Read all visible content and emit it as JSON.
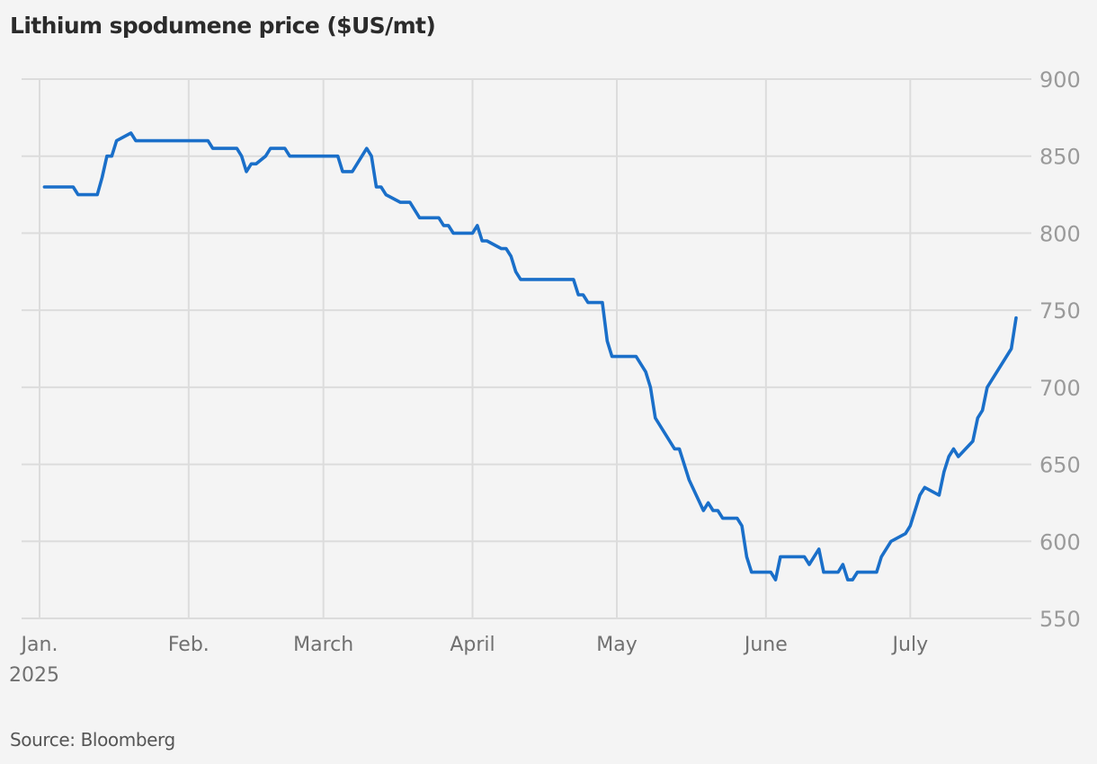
{
  "title": "Lithium spodumene price ($US/mt)",
  "source": "Source: Bloomberg",
  "colors": {
    "background": "#f4f4f4",
    "gridline": "#dcdcdc",
    "line": "#1a6fc9",
    "title": "#2b2b2b",
    "ytick": "#9a9a9a",
    "xtick": "#707070",
    "source": "#555555"
  },
  "chart_data": {
    "type": "line",
    "title": "Lithium spodumene price ($US/mt)",
    "xlabel": "",
    "ylabel": "$US/mt",
    "ylim": [
      550,
      900
    ],
    "yticks": [
      550,
      600,
      650,
      700,
      750,
      800,
      850,
      900
    ],
    "xticks": [
      {
        "label": "Jan.",
        "sublabel": "2025",
        "pos": 0
      },
      {
        "label": "Feb.",
        "pos": 31
      },
      {
        "label": "March",
        "pos": 59
      },
      {
        "label": "April",
        "pos": 90
      },
      {
        "label": "May",
        "pos": 120
      },
      {
        "label": "June",
        "pos": 151
      },
      {
        "label": "July",
        "pos": 181
      }
    ],
    "grid": true,
    "legend": null,
    "yaxis_position": "right",
    "source": "Bloomberg",
    "series": [
      {
        "name": "Lithium spodumene price",
        "x_unit": "days since Jan 1, 2025",
        "points": [
          [
            1,
            830
          ],
          [
            7,
            830
          ],
          [
            8,
            825
          ],
          [
            12,
            825
          ],
          [
            13,
            836
          ],
          [
            14,
            850
          ],
          [
            15,
            850
          ],
          [
            16,
            860
          ],
          [
            19,
            865
          ],
          [
            20,
            860
          ],
          [
            35,
            860
          ],
          [
            36,
            855
          ],
          [
            41,
            855
          ],
          [
            42,
            850
          ],
          [
            43,
            840
          ],
          [
            44,
            845
          ],
          [
            45,
            845
          ],
          [
            47,
            850
          ],
          [
            48,
            855
          ],
          [
            51,
            855
          ],
          [
            52,
            850
          ],
          [
            62,
            850
          ],
          [
            63,
            840
          ],
          [
            65,
            840
          ],
          [
            68,
            855
          ],
          [
            69,
            850
          ],
          [
            70,
            830
          ],
          [
            71,
            830
          ],
          [
            72,
            825
          ],
          [
            75,
            820
          ],
          [
            77,
            820
          ],
          [
            79,
            810
          ],
          [
            83,
            810
          ],
          [
            84,
            805
          ],
          [
            85,
            805
          ],
          [
            86,
            800
          ],
          [
            90,
            800
          ],
          [
            91,
            805
          ],
          [
            92,
            795
          ],
          [
            93,
            795
          ],
          [
            96,
            790
          ],
          [
            97,
            790
          ],
          [
            98,
            785
          ],
          [
            99,
            775
          ],
          [
            100,
            770
          ],
          [
            111,
            770
          ],
          [
            112,
            760
          ],
          [
            113,
            760
          ],
          [
            114,
            755
          ],
          [
            117,
            755
          ],
          [
            118,
            730
          ],
          [
            119,
            720
          ],
          [
            124,
            720
          ],
          [
            126,
            710
          ],
          [
            127,
            700
          ],
          [
            128,
            680
          ],
          [
            132,
            660
          ],
          [
            133,
            660
          ],
          [
            135,
            640
          ],
          [
            138,
            620
          ],
          [
            139,
            625
          ],
          [
            140,
            620
          ],
          [
            141,
            620
          ],
          [
            142,
            615
          ],
          [
            145,
            615
          ],
          [
            146,
            610
          ],
          [
            147,
            590
          ],
          [
            148,
            580
          ],
          [
            152,
            580
          ],
          [
            153,
            575
          ],
          [
            154,
            590
          ],
          [
            159,
            590
          ],
          [
            160,
            585
          ],
          [
            162,
            595
          ],
          [
            163,
            580
          ],
          [
            166,
            580
          ],
          [
            167,
            585
          ],
          [
            168,
            575
          ],
          [
            169,
            575
          ],
          [
            170,
            580
          ],
          [
            174,
            580
          ],
          [
            175,
            590
          ],
          [
            177,
            600
          ],
          [
            180,
            605
          ],
          [
            181,
            610
          ],
          [
            183,
            630
          ],
          [
            184,
            635
          ],
          [
            187,
            630
          ],
          [
            188,
            645
          ],
          [
            189,
            655
          ],
          [
            190,
            660
          ],
          [
            191,
            655
          ],
          [
            194,
            665
          ],
          [
            195,
            680
          ],
          [
            196,
            685
          ],
          [
            197,
            700
          ],
          [
            202,
            725
          ],
          [
            203,
            745
          ]
        ]
      }
    ]
  }
}
